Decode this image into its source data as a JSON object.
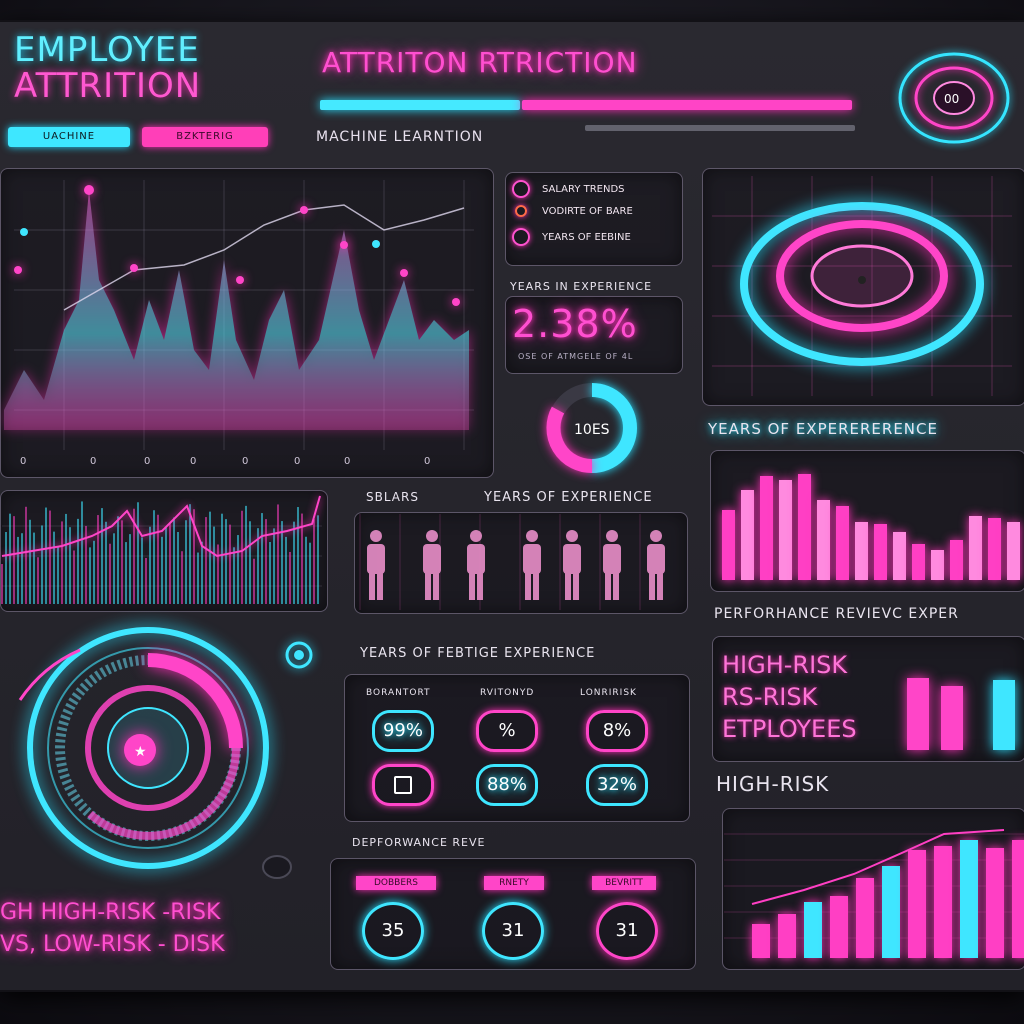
{
  "header": {
    "title_line1": "EMPLOYEE",
    "title_line2": "ATTRITION",
    "tag_left": "UACHINE",
    "tag_right": "BZKTERIG",
    "headline": "ATTRITON RTRICTION",
    "subhead": "MACHINE LEARNTION"
  },
  "legend": {
    "items": [
      "SALARY TRENDS",
      "VODIRTE OF BARE",
      "YEARS OF EEBINE"
    ]
  },
  "kpi": {
    "label": "YEARS IN EXPERIENCE",
    "value": "2.38%",
    "sublabel": "OSE OF ATMGELE OF 4L",
    "donut_value": "10ES"
  },
  "right_panel": {
    "caption": "YEARS OF EXPERERERENCE",
    "bars_caption": "PERFORHANCE REVIEVC EXPER",
    "risk_lines": [
      "HIGH-RISK",
      "RS-RISK",
      "ETPLOYEES"
    ],
    "risk_heading": "HIGH-RISK"
  },
  "middle": {
    "salary_label": "SBLARS",
    "exp_label": "YEARS OF EXPERIENCE",
    "section_label": "YEARS OF FEBTIGE EXPERIENCE",
    "stat_headers": [
      "BORANTORT",
      "RVITONYD",
      "LONRIRISK"
    ],
    "stats_row1": [
      "99%",
      "%",
      "8%"
    ],
    "stats_row2": [
      "",
      "88%",
      "32%"
    ],
    "review_label": "DEPFORWANCE REVE",
    "review_headers": [
      "DOBBERS",
      "RNETY",
      "BEVRITT"
    ],
    "review_values": [
      "35",
      "31",
      "31"
    ]
  },
  "bottom_left": {
    "line1": "GH HIGH-RISK -RISK",
    "line2": "VS, LOW-RISK - DISK"
  },
  "colors": {
    "pink": "#ff3fc4",
    "cyan": "#3fe6ff",
    "panel": "#2a2930"
  }
}
